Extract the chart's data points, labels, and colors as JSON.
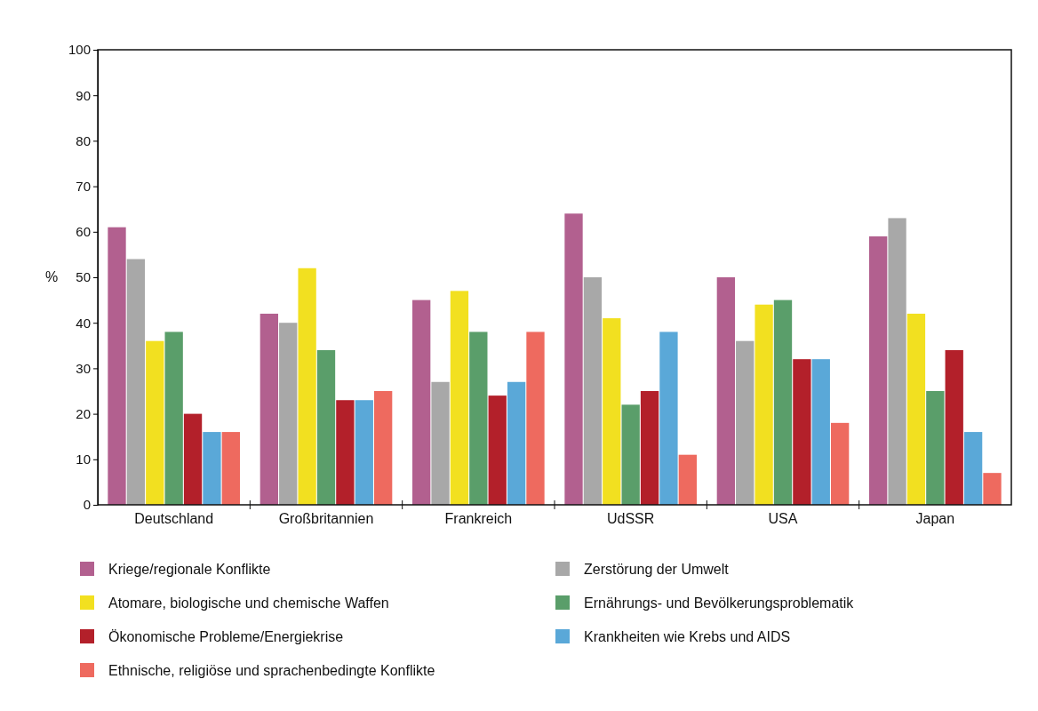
{
  "chart_data": {
    "type": "bar",
    "ylabel": "%",
    "categories": [
      "Deutschland",
      "Großbritannien",
      "Frankreich",
      "UdSSR",
      "USA",
      "Japan"
    ],
    "series": [
      {
        "name": "Kriege/regionale Konflikte",
        "color": "#b2608f",
        "values": [
          61,
          42,
          45,
          64,
          50,
          59
        ]
      },
      {
        "name": "Zerstörung der Umwelt",
        "color": "#a8a8a8",
        "values": [
          54,
          40,
          27,
          50,
          36,
          63
        ]
      },
      {
        "name": "Atomare, biologische und chemische Waffen",
        "color": "#f2e020",
        "values": [
          36,
          52,
          47,
          41,
          44,
          42
        ]
      },
      {
        "name": "Ernährungs- und Bevölkerungsproblematik",
        "color": "#5a9e6a",
        "values": [
          38,
          34,
          38,
          22,
          45,
          25
        ]
      },
      {
        "name": "Ökonomische Probleme/Energiekrise",
        "color": "#b3202a",
        "values": [
          20,
          23,
          24,
          25,
          32,
          34
        ]
      },
      {
        "name": "Krankheiten wie Krebs und AIDS",
        "color": "#5aa8d8",
        "values": [
          16,
          23,
          27,
          38,
          32,
          16
        ]
      },
      {
        "name": "Ethnische, religiöse und sprachenbedingte Konflikte",
        "color": "#ee6a5f",
        "values": [
          16,
          25,
          38,
          11,
          18,
          7
        ]
      }
    ],
    "ylim": [
      0,
      100
    ],
    "yticks": [
      0,
      10,
      20,
      30,
      40,
      50,
      60,
      70,
      80,
      90,
      100
    ],
    "grid": false,
    "legend": "bottom"
  }
}
